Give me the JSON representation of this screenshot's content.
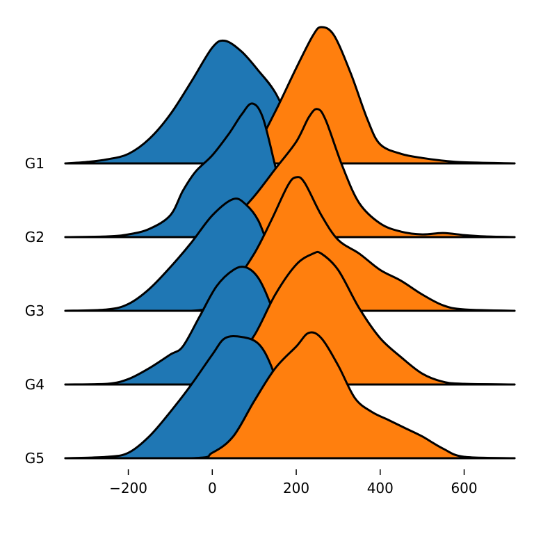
{
  "chart_data": {
    "type": "ridgeline",
    "xlim": [
      -350,
      720
    ],
    "xticks": [
      -200,
      0,
      200,
      400,
      600
    ],
    "xtick_labels": [
      "−200",
      "0",
      "200",
      "400",
      "600"
    ],
    "grid": false,
    "legend": "none",
    "categories": [
      "G1",
      "G2",
      "G3",
      "G4",
      "G5"
    ],
    "series_colors": {
      "blue": "#1f77b4",
      "orange": "#ff7f0e"
    },
    "ridges": [
      {
        "label": "G1",
        "blue": [
          [
            -350,
            0
          ],
          [
            -300,
            0.01
          ],
          [
            -250,
            0.03
          ],
          [
            -200,
            0.07
          ],
          [
            -150,
            0.18
          ],
          [
            -100,
            0.36
          ],
          [
            -50,
            0.6
          ],
          [
            0,
            0.85
          ],
          [
            30,
            0.9
          ],
          [
            70,
            0.82
          ],
          [
            110,
            0.68
          ],
          [
            150,
            0.52
          ],
          [
            200,
            0.22
          ],
          [
            250,
            0.06
          ],
          [
            300,
            0.02
          ],
          [
            350,
            0.005
          ],
          [
            720,
            0
          ]
        ],
        "orange": [
          [
            -350,
            0
          ],
          [
            0,
            0
          ],
          [
            60,
            0.02
          ],
          [
            100,
            0.1
          ],
          [
            150,
            0.38
          ],
          [
            200,
            0.7
          ],
          [
            240,
            0.94
          ],
          [
            260,
            1.0
          ],
          [
            290,
            0.94
          ],
          [
            330,
            0.66
          ],
          [
            370,
            0.32
          ],
          [
            400,
            0.14
          ],
          [
            450,
            0.07
          ],
          [
            500,
            0.04
          ],
          [
            550,
            0.02
          ],
          [
            600,
            0.008
          ],
          [
            720,
            0
          ]
        ]
      },
      {
        "label": "G2",
        "blue": [
          [
            -350,
            0
          ],
          [
            -250,
            0.005
          ],
          [
            -200,
            0.02
          ],
          [
            -150,
            0.06
          ],
          [
            -100,
            0.16
          ],
          [
            -70,
            0.34
          ],
          [
            -40,
            0.48
          ],
          [
            0,
            0.6
          ],
          [
            40,
            0.76
          ],
          [
            70,
            0.9
          ],
          [
            95,
            0.98
          ],
          [
            120,
            0.88
          ],
          [
            150,
            0.52
          ],
          [
            170,
            0.25
          ],
          [
            200,
            0.1
          ],
          [
            250,
            0.03
          ],
          [
            300,
            0.008
          ],
          [
            720,
            0
          ]
        ],
        "orange": [
          [
            -350,
            0
          ],
          [
            -50,
            0
          ],
          [
            0,
            0.04
          ],
          [
            50,
            0.14
          ],
          [
            100,
            0.3
          ],
          [
            150,
            0.5
          ],
          [
            200,
            0.7
          ],
          [
            230,
            0.88
          ],
          [
            250,
            0.94
          ],
          [
            270,
            0.86
          ],
          [
            310,
            0.52
          ],
          [
            350,
            0.25
          ],
          [
            400,
            0.1
          ],
          [
            450,
            0.04
          ],
          [
            500,
            0.02
          ],
          [
            550,
            0.03
          ],
          [
            600,
            0.015
          ],
          [
            650,
            0.005
          ],
          [
            720,
            0
          ]
        ]
      },
      {
        "label": "G3",
        "blue": [
          [
            -350,
            0
          ],
          [
            -250,
            0.01
          ],
          [
            -200,
            0.05
          ],
          [
            -150,
            0.16
          ],
          [
            -100,
            0.32
          ],
          [
            -50,
            0.5
          ],
          [
            0,
            0.7
          ],
          [
            50,
            0.82
          ],
          [
            80,
            0.78
          ],
          [
            110,
            0.66
          ],
          [
            140,
            0.42
          ],
          [
            170,
            0.2
          ],
          [
            200,
            0.08
          ],
          [
            250,
            0.02
          ],
          [
            300,
            0.005
          ],
          [
            720,
            0
          ]
        ],
        "orange": [
          [
            -350,
            0
          ],
          [
            -50,
            0
          ],
          [
            0,
            0.06
          ],
          [
            50,
            0.2
          ],
          [
            100,
            0.42
          ],
          [
            140,
            0.66
          ],
          [
            180,
            0.92
          ],
          [
            200,
            0.98
          ],
          [
            220,
            0.94
          ],
          [
            260,
            0.7
          ],
          [
            300,
            0.52
          ],
          [
            350,
            0.42
          ],
          [
            400,
            0.3
          ],
          [
            450,
            0.22
          ],
          [
            500,
            0.12
          ],
          [
            550,
            0.04
          ],
          [
            600,
            0.01
          ],
          [
            720,
            0
          ]
        ]
      },
      {
        "label": "G4",
        "blue": [
          [
            -350,
            0
          ],
          [
            -250,
            0.005
          ],
          [
            -200,
            0.04
          ],
          [
            -150,
            0.12
          ],
          [
            -100,
            0.22
          ],
          [
            -70,
            0.28
          ],
          [
            -30,
            0.5
          ],
          [
            10,
            0.72
          ],
          [
            50,
            0.84
          ],
          [
            80,
            0.86
          ],
          [
            110,
            0.78
          ],
          [
            140,
            0.58
          ],
          [
            170,
            0.3
          ],
          [
            210,
            0.1
          ],
          [
            250,
            0.03
          ],
          [
            300,
            0.008
          ],
          [
            720,
            0
          ]
        ],
        "orange": [
          [
            -350,
            0
          ],
          [
            -50,
            0
          ],
          [
            0,
            0.06
          ],
          [
            50,
            0.18
          ],
          [
            100,
            0.36
          ],
          [
            150,
            0.66
          ],
          [
            200,
            0.88
          ],
          [
            240,
            0.96
          ],
          [
            260,
            0.96
          ],
          [
            300,
            0.84
          ],
          [
            350,
            0.56
          ],
          [
            400,
            0.34
          ],
          [
            450,
            0.2
          ],
          [
            500,
            0.08
          ],
          [
            550,
            0.02
          ],
          [
            600,
            0.005
          ],
          [
            720,
            0
          ]
        ]
      },
      {
        "label": "G5",
        "blue": [
          [
            -350,
            0
          ],
          [
            -250,
            0.01
          ],
          [
            -200,
            0.04
          ],
          [
            -150,
            0.16
          ],
          [
            -100,
            0.34
          ],
          [
            -50,
            0.54
          ],
          [
            0,
            0.76
          ],
          [
            30,
            0.88
          ],
          [
            70,
            0.89
          ],
          [
            110,
            0.84
          ],
          [
            140,
            0.68
          ],
          [
            170,
            0.4
          ],
          [
            200,
            0.18
          ],
          [
            250,
            0.06
          ],
          [
            300,
            0.015
          ],
          [
            720,
            0
          ]
        ],
        "orange": [
          [
            -350,
            0
          ],
          [
            -50,
            0
          ],
          [
            0,
            0.04
          ],
          [
            50,
            0.16
          ],
          [
            100,
            0.42
          ],
          [
            150,
            0.66
          ],
          [
            200,
            0.82
          ],
          [
            230,
            0.92
          ],
          [
            260,
            0.88
          ],
          [
            300,
            0.68
          ],
          [
            340,
            0.44
          ],
          [
            380,
            0.34
          ],
          [
            420,
            0.28
          ],
          [
            460,
            0.22
          ],
          [
            500,
            0.16
          ],
          [
            550,
            0.07
          ],
          [
            600,
            0.01
          ],
          [
            720,
            0
          ]
        ]
      }
    ]
  }
}
